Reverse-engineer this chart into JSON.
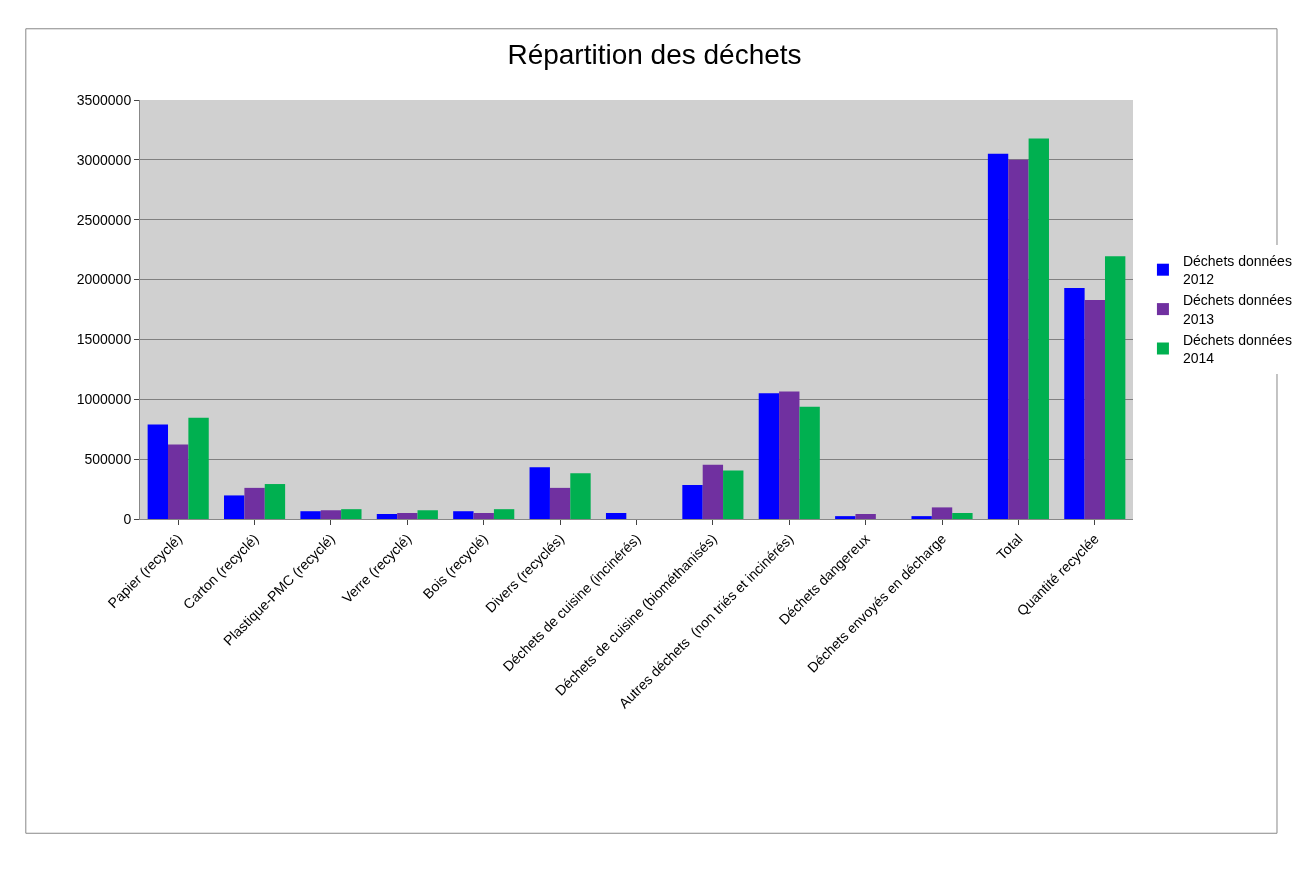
{
  "chart_data": {
    "type": "bar",
    "title": "Répartition des déchets",
    "categories": [
      "Papier (recyclé)",
      "Carton (recyclé)",
      "Plastique-PMC (recyclé)",
      "Verre (recyclé)",
      "Bois (recyclé)",
      "Divers (recyclés)",
      "Déchets de cuisine (incinérés)",
      "Déchets de cuisine (biométhanisés)",
      "Autres déchets  (non triés et incinérés)",
      "Déchets dangereux",
      "Déchets envoyés en décharge",
      "Total",
      "Quantité recyclée"
    ],
    "series": [
      {
        "name": "Déchets données 2012",
        "color": "#0000ff",
        "values": [
          790000,
          197000,
          65000,
          42000,
          65000,
          432000,
          50000,
          284000,
          1050000,
          24000,
          24000,
          3050000,
          1930000
        ]
      },
      {
        "name": "Déchets données 2013",
        "color": "#7030a0",
        "values": [
          622000,
          260000,
          73000,
          50000,
          50000,
          260000,
          null,
          453000,
          1066000,
          42000,
          97000,
          3000000,
          1830000
        ]
      },
      {
        "name": "Déchets données 2014",
        "color": "#00b050",
        "values": [
          846000,
          292000,
          82000,
          73000,
          82000,
          382000,
          null,
          406000,
          938000,
          null,
          50000,
          3178000,
          2195000
        ]
      }
    ],
    "ylim": [
      0,
      3500000
    ],
    "yticks": [
      0,
      500000,
      1000000,
      1500000,
      2000000,
      2500000,
      3000000,
      3500000
    ],
    "grid": "y",
    "legend": "right"
  }
}
